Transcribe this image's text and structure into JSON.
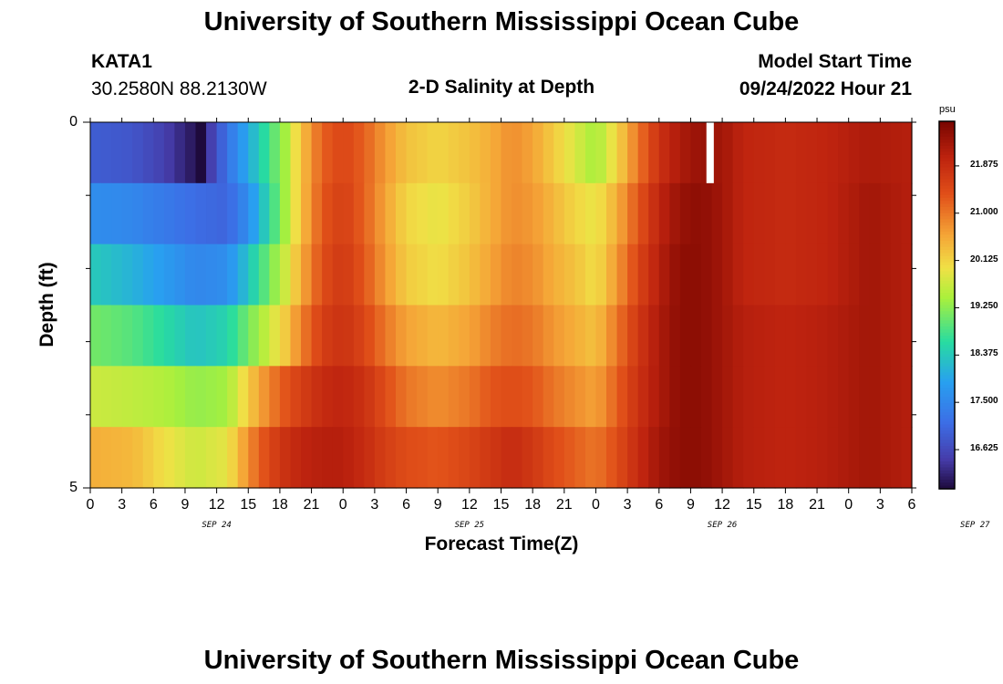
{
  "header": {
    "title": "University of Southern Mississippi Ocean Cube",
    "station_id": "KATA1",
    "station_coords": "30.2580N  88.2130W",
    "plot_title": "2-D Salinity at Depth",
    "model_start_label": "Model Start Time",
    "model_start_value": "09/24/2022 Hour 21",
    "footer_title": "University of Southern Mississippi Ocean Cube"
  },
  "chart_data": {
    "type": "heatmap",
    "title": "2-D Salinity at Depth",
    "xlabel": "Forecast Time(Z)",
    "ylabel": "Depth (ft)",
    "colorbar_unit": "psu",
    "colorbar_ticks": [
      "16.625",
      "17.500",
      "18.375",
      "19.250",
      "20.125",
      "21.000",
      "21.875"
    ],
    "colorbar_range": [
      15.9,
      22.7
    ],
    "y_tick_labels": [
      "0",
      "5"
    ],
    "y_range": [
      0,
      5
    ],
    "x_tick_labels": [
      "0",
      "3",
      "6",
      "9",
      "12",
      "15",
      "18",
      "21",
      "0",
      "3",
      "6",
      "9",
      "12",
      "15",
      "18",
      "21",
      "0",
      "3",
      "6",
      "9",
      "12",
      "15",
      "18",
      "21",
      "0",
      "3",
      "6"
    ],
    "date_labels": [
      {
        "text": "SEP 24",
        "hour": 12
      },
      {
        "text": "SEP 25",
        "hour": 36
      },
      {
        "text": "SEP 26",
        "hour": 60
      },
      {
        "text": "SEP 27",
        "hour": 84
      }
    ],
    "x_range_hours": [
      0,
      78
    ],
    "depth_layers": 6,
    "missing_block": {
      "hours": [
        58.5,
        59.2
      ],
      "layer": 0
    },
    "salinity_keyframes": [
      {
        "hours": [
          0,
          4,
          7,
          9.5,
          10.5,
          11.5,
          13,
          15,
          17,
          18.5,
          20,
          22,
          24,
          26,
          28,
          30,
          33,
          36,
          38,
          40,
          42,
          44,
          46,
          48,
          50,
          52,
          54,
          56,
          58,
          60,
          62,
          66,
          70,
          74,
          78
        ],
        "values": [
          16.9,
          16.8,
          16.5,
          16.1,
          15.9,
          16.5,
          17.2,
          18.0,
          18.8,
          19.4,
          20.3,
          21.2,
          21.5,
          21.2,
          20.7,
          20.3,
          20.1,
          20.3,
          20.5,
          20.8,
          20.6,
          20.2,
          19.8,
          19.4,
          20.1,
          21.0,
          21.8,
          22.2,
          22.4,
          22.3,
          22.0,
          21.9,
          22.0,
          22.2,
          22.1
        ]
      },
      {
        "hours": [
          0,
          4,
          7,
          10,
          13,
          15,
          17,
          18.5,
          20,
          22,
          24,
          26,
          28,
          30,
          33,
          36,
          38,
          40,
          42,
          44,
          46,
          48,
          50,
          52,
          54,
          56,
          58,
          60,
          62,
          66,
          70,
          74,
          78
        ],
        "values": [
          17.6,
          17.5,
          17.3,
          17.1,
          17.0,
          17.6,
          18.6,
          19.4,
          20.3,
          21.3,
          21.6,
          21.2,
          20.6,
          20.1,
          19.9,
          20.2,
          20.5,
          20.8,
          20.7,
          20.4,
          20.1,
          19.9,
          20.5,
          21.3,
          22.0,
          22.4,
          22.5,
          22.3,
          22.0,
          21.9,
          22.0,
          22.3,
          22.1
        ]
      },
      {
        "hours": [
          0,
          4,
          7,
          10,
          13,
          15,
          17,
          18.5,
          20,
          22,
          24,
          26,
          28,
          30,
          33,
          36,
          38,
          40,
          42,
          44,
          46,
          48,
          50,
          52,
          54,
          56,
          58,
          60,
          62,
          66,
          70,
          74,
          78
        ],
        "values": [
          18.4,
          18.1,
          17.8,
          17.5,
          17.6,
          18.3,
          19.1,
          19.7,
          20.5,
          21.4,
          21.7,
          21.3,
          20.7,
          20.2,
          20.0,
          20.3,
          20.6,
          20.9,
          20.8,
          20.5,
          20.3,
          20.0,
          20.7,
          21.5,
          22.1,
          22.5,
          22.5,
          22.3,
          22.0,
          21.9,
          22.0,
          22.3,
          22.1
        ]
      },
      {
        "hours": [
          0,
          4,
          7,
          10,
          13,
          15,
          17,
          18.5,
          20,
          22,
          24,
          26,
          28,
          30,
          33,
          36,
          38,
          40,
          42,
          44,
          46,
          48,
          50,
          52,
          54,
          56,
          58,
          60,
          62,
          66,
          70,
          74,
          78
        ],
        "values": [
          19.1,
          18.9,
          18.6,
          18.3,
          18.5,
          19.1,
          19.7,
          20.2,
          20.9,
          21.6,
          21.8,
          21.5,
          21.0,
          20.6,
          20.4,
          20.6,
          20.9,
          21.1,
          21.0,
          20.7,
          20.5,
          20.3,
          21.0,
          21.7,
          22.2,
          22.5,
          22.5,
          22.3,
          22.1,
          22.0,
          22.1,
          22.3,
          22.1
        ]
      },
      {
        "hours": [
          0,
          4,
          7,
          10,
          13,
          15,
          17,
          18.5,
          20,
          22,
          24,
          26,
          28,
          30,
          33,
          36,
          38,
          40,
          42,
          44,
          46,
          48,
          50,
          52,
          54,
          56,
          58,
          60,
          62,
          66,
          70,
          74,
          78
        ],
        "values": [
          19.7,
          19.6,
          19.5,
          19.3,
          19.4,
          20.2,
          20.9,
          21.3,
          21.6,
          21.9,
          22.0,
          21.8,
          21.4,
          21.0,
          20.8,
          21.0,
          21.3,
          21.4,
          21.3,
          21.0,
          20.8,
          20.6,
          21.2,
          21.8,
          22.2,
          22.5,
          22.5,
          22.3,
          22.1,
          22.0,
          22.1,
          22.3,
          22.1
        ]
      },
      {
        "hours": [
          0,
          4,
          7,
          10,
          13,
          15,
          17,
          18.5,
          20,
          22,
          24,
          26,
          28,
          30,
          33,
          36,
          38,
          40,
          42,
          44,
          46,
          48,
          50,
          52,
          54,
          56,
          58,
          60,
          62,
          66,
          70,
          74,
          78
        ],
        "values": [
          20.5,
          20.4,
          20.0,
          19.7,
          19.9,
          20.8,
          21.5,
          21.8,
          22.0,
          22.1,
          22.1,
          21.9,
          21.6,
          21.4,
          21.3,
          21.5,
          21.7,
          21.9,
          21.7,
          21.4,
          21.2,
          21.0,
          21.4,
          21.9,
          22.3,
          22.5,
          22.5,
          22.3,
          22.1,
          22.0,
          22.1,
          22.3,
          22.1
        ]
      }
    ]
  }
}
